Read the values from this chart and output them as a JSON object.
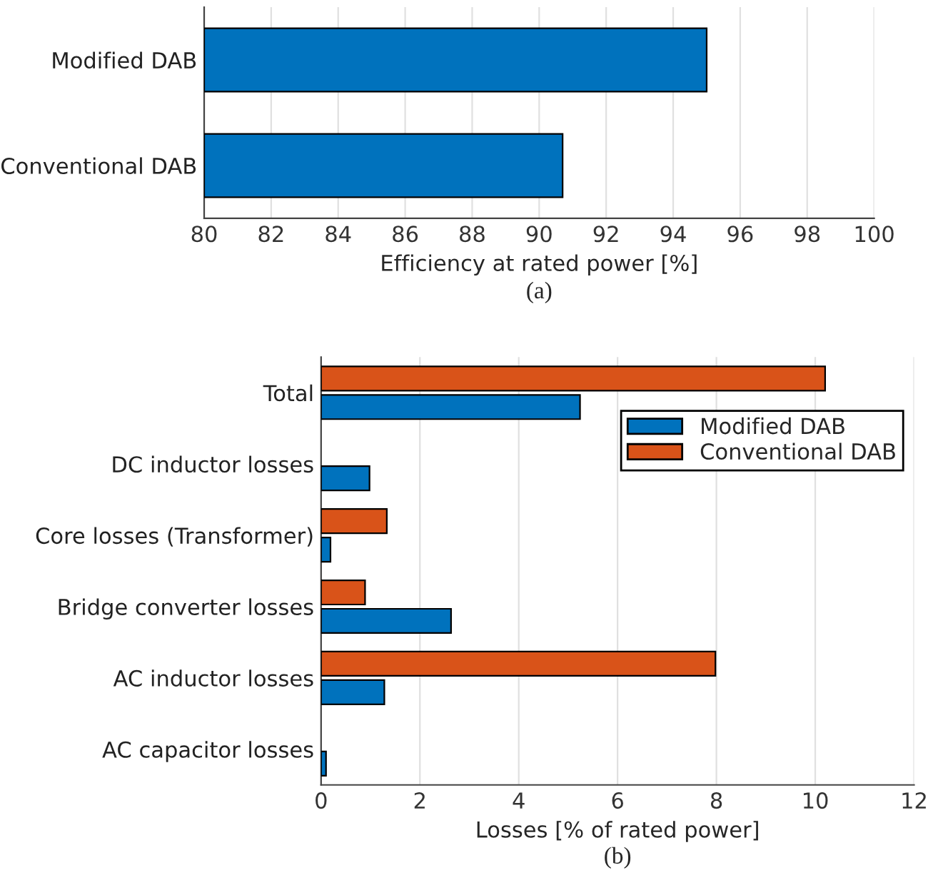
{
  "chart_data": [
    {
      "type": "bar",
      "orientation": "horizontal",
      "categories": [
        "Modified DAB",
        "Conventional DAB"
      ],
      "values": [
        95.0,
        90.7
      ],
      "color": "#0072bd",
      "xlim": [
        80,
        100
      ],
      "xticks": [
        80,
        82,
        84,
        86,
        88,
        90,
        92,
        94,
        96,
        98,
        100
      ],
      "xlabel": "Efficiency at rated power [%]",
      "grid": "x",
      "annotations": [
        "(a)"
      ]
    },
    {
      "type": "bar",
      "orientation": "horizontal",
      "categories": [
        "Total",
        "DC inductor losses",
        "Core losses (Transformer)",
        "Bridge converter losses",
        "AC inductor losses",
        "AC capacitor losses"
      ],
      "series": [
        {
          "name": "Modified DAB",
          "color": "#0072bd",
          "values": [
            5.24,
            0.98,
            0.19,
            2.63,
            1.28,
            0.1
          ]
        },
        {
          "name": "Conventional DAB",
          "color": "#d95319",
          "values": [
            10.2,
            null,
            1.33,
            0.89,
            7.98,
            null
          ]
        }
      ],
      "xlim": [
        0,
        12
      ],
      "xticks": [
        0,
        2,
        4,
        6,
        8,
        10,
        12
      ],
      "xlabel": "Losses [% of rated power]",
      "grid": "x",
      "legend": "top right",
      "annotations": [
        "(b)"
      ]
    }
  ]
}
